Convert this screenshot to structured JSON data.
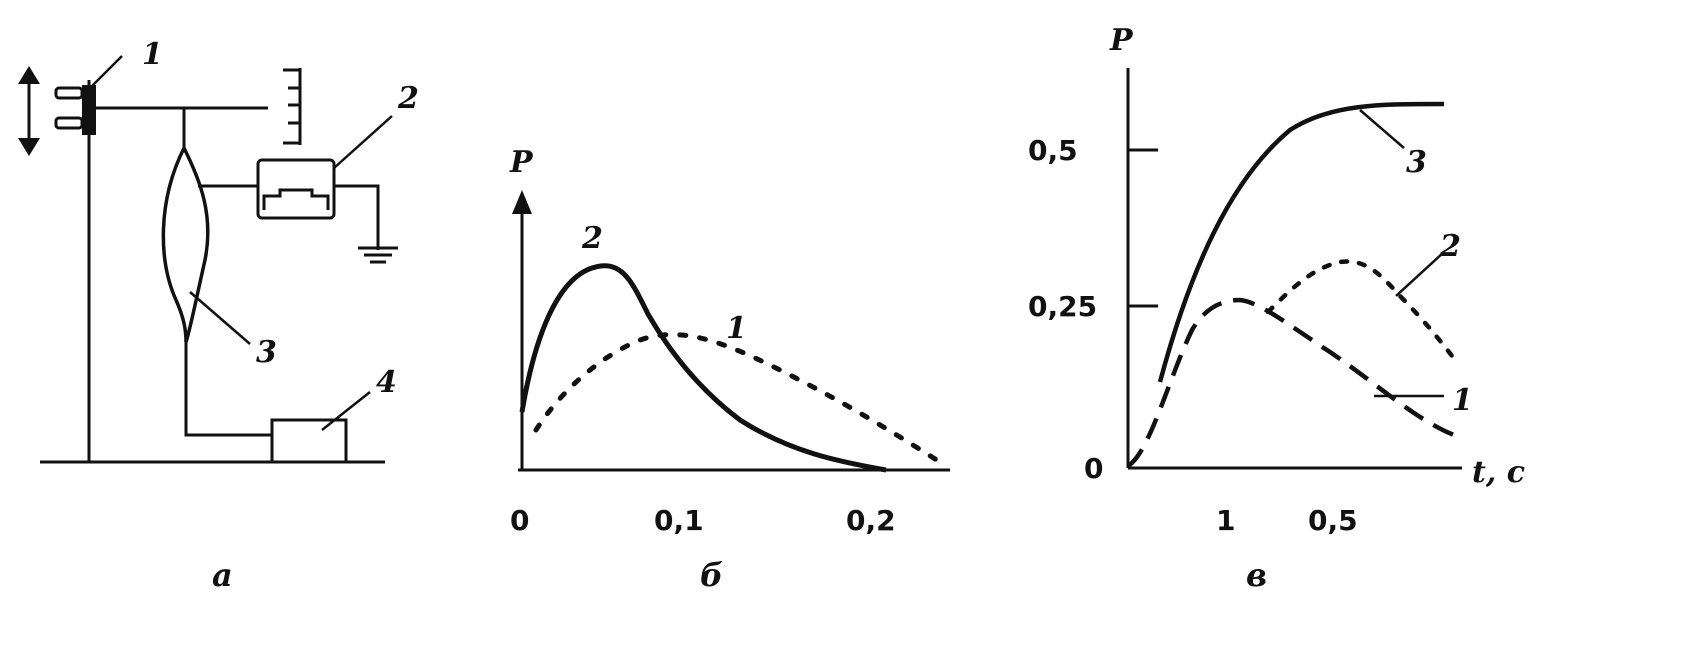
{
  "panel_a": {
    "caption": "а",
    "labels": {
      "l1": "1",
      "l2": "2",
      "l3": "3",
      "l4": "4"
    }
  },
  "panel_b": {
    "caption": "б",
    "y_axis_label": "P",
    "x_ticks": [
      "0",
      "0,1",
      "0,2"
    ],
    "curve_labels": {
      "c1": "1",
      "c2": "2"
    }
  },
  "panel_c": {
    "caption": "в",
    "y_axis_label": "P",
    "x_axis_label": "t, с",
    "y_ticks": [
      "0",
      "0,25",
      "0,5"
    ],
    "x_ticks": [
      "1",
      "0,5"
    ],
    "curve_labels": {
      "c1": "1",
      "c2": "2",
      "c3": "3"
    }
  }
}
